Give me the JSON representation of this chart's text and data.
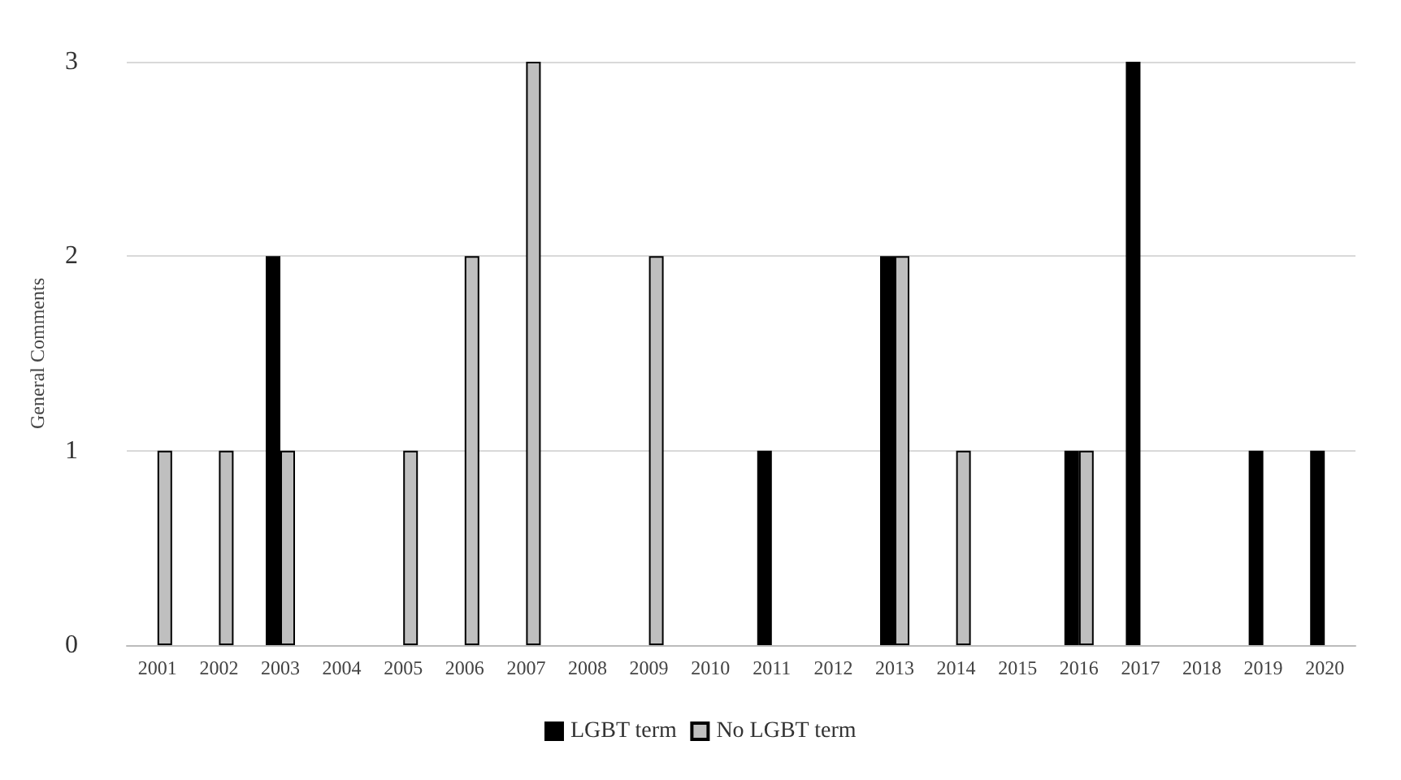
{
  "chart_data": {
    "type": "bar",
    "ylabel": "General Comments",
    "categories": [
      "2001",
      "2002",
      "2003",
      "2004",
      "2005",
      "2006",
      "2007",
      "2008",
      "2009",
      "2010",
      "2011",
      "2012",
      "2013",
      "2014",
      "2015",
      "2016",
      "2017",
      "2018",
      "2019",
      "2020"
    ],
    "series": [
      {
        "name": "LGBT term",
        "color": "#000000",
        "values": [
          0,
          0,
          2,
          0,
          0,
          0,
          0,
          0,
          0,
          0,
          1,
          0,
          2,
          0,
          0,
          1,
          3,
          0,
          1,
          1
        ]
      },
      {
        "name": "No LGBT term",
        "color": "#bfbfbf",
        "values": [
          1,
          1,
          1,
          0,
          1,
          2,
          3,
          0,
          2,
          0,
          0,
          0,
          2,
          1,
          0,
          1,
          0,
          0,
          0,
          0
        ]
      }
    ],
    "ylim": [
      0,
      3
    ],
    "yticks": [
      0,
      1,
      2,
      3
    ],
    "grid": "y",
    "legend": "bottom"
  }
}
